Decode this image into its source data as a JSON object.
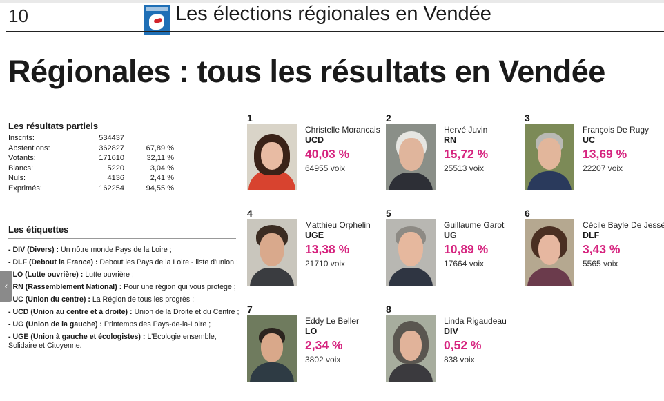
{
  "header": {
    "page_number": "10",
    "section_title": "Les élections régionales en Vendée"
  },
  "headline": "Régionales : tous les résultats en Vendée",
  "resultats": {
    "title": "Les résultats partiels",
    "rows": [
      {
        "label": "Inscrits:",
        "value": "534437",
        "pct": ""
      },
      {
        "label": "Abstentions:",
        "value": "362827",
        "pct": "67,89 %"
      },
      {
        "label": "Votants:",
        "value": "171610",
        "pct": "32,11 %"
      },
      {
        "label": "Blancs:",
        "value": "5220",
        "pct": "3,04 %"
      },
      {
        "label": "Nuls:",
        "value": "4136",
        "pct": "2,41 %"
      },
      {
        "label": "Exprimés:",
        "value": "162254",
        "pct": "94,55 %"
      }
    ]
  },
  "etiquettes": {
    "title": "Les étiquettes",
    "items": [
      {
        "code": "- DIV (Divers) :",
        "text": " Un nôtre monde Pays de la Loire ;"
      },
      {
        "code": "- DLF (Debout la France) :",
        "text": " Debout les Pays de la Loire - liste d'union ;"
      },
      {
        "code": "- LO (Lutte ouvrière) :",
        "text": " Lutte ouvrière ;"
      },
      {
        "code": "- RN (Rassemblement National) :",
        "text": " Pour une région qui vous protège ;"
      },
      {
        "code": "- UC (Union du centre) :",
        "text": " La Région de tous les progrès ;"
      },
      {
        "code": "- UCD (Union au centre et à droite) :",
        "text": " Union de la Droite et du Centre ;"
      },
      {
        "code": "- UG (Union de la gauche) :",
        "text": " Printemps des Pays-de-la-Loire ;"
      },
      {
        "code": "- UGE (Union à gauche et écologistes) :",
        "text": " L'Ecologie ensemble, Solidaire et Citoyenne."
      }
    ]
  },
  "candidates": [
    {
      "rank": "1",
      "name": "Christelle Morancais",
      "party": "UCD",
      "pct": "40,03 %",
      "voix": "64955 voix"
    },
    {
      "rank": "2",
      "name": "Hervé Juvin",
      "party": "RN",
      "pct": "15,72 %",
      "voix": "25513 voix"
    },
    {
      "rank": "3",
      "name": "François De Rugy",
      "party": "UC",
      "pct": "13,69 %",
      "voix": "22207 voix"
    },
    {
      "rank": "4",
      "name": "Matthieu Orphelin",
      "party": "UGE",
      "pct": "13,38 %",
      "voix": "21710 voix"
    },
    {
      "rank": "5",
      "name": "Guillaume Garot",
      "party": "UG",
      "pct": "10,89 %",
      "voix": "17664 voix"
    },
    {
      "rank": "6",
      "name": "Cécile Bayle De Jessé",
      "party": "DLF",
      "pct": "3,43 %",
      "voix": "5565 voix"
    },
    {
      "rank": "7",
      "name": "Eddy Le Beller",
      "party": "LO",
      "pct": "2,34 %",
      "voix": "3802 voix"
    },
    {
      "rank": "8",
      "name": "Linda Rigaudeau",
      "party": "DIV",
      "pct": "0,52 %",
      "voix": "838 voix"
    }
  ],
  "colors": {
    "accent_pct": "#d6247f",
    "logo_blue": "#1f6fb6",
    "logo_red": "#d2232a"
  },
  "icons": {
    "side_tab": "chevron-left-icon",
    "logo": "regionales-logo"
  }
}
